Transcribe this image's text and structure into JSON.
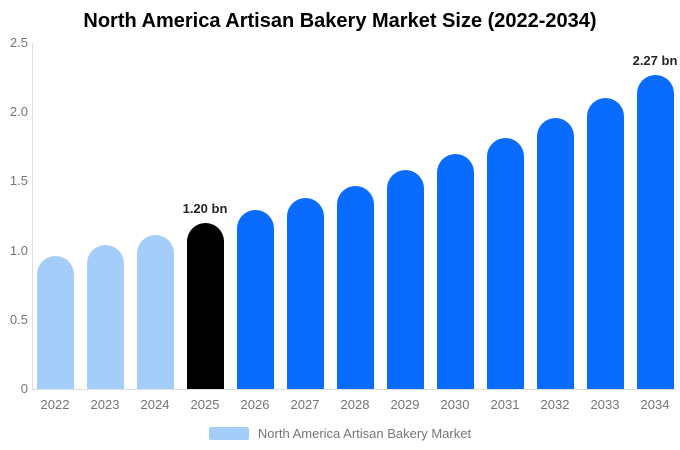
{
  "page": {
    "title": "North America Artisan Bakery Market Size (2022-2034)"
  },
  "chart_data": {
    "type": "bar",
    "title": "North America Artisan Bakery Market Size (2022-2034)",
    "unit": "bn",
    "categories": [
      "2022",
      "2023",
      "2024",
      "2025",
      "2026",
      "2027",
      "2028",
      "2029",
      "2030",
      "2031",
      "2032",
      "2033",
      "2034"
    ],
    "values": [
      0.96,
      1.04,
      1.11,
      1.2,
      1.29,
      1.38,
      1.47,
      1.58,
      1.7,
      1.81,
      1.96,
      2.1,
      2.27
    ],
    "bar_colors": [
      "#A5CDFA",
      "#A5CDFA",
      "#A5CDFA",
      "#000000",
      "#0A6CFF",
      "#0A6CFF",
      "#0A6CFF",
      "#0A6CFF",
      "#0A6CFF",
      "#0A6CFF",
      "#0A6CFF",
      "#0A6CFF",
      "#0A6CFF"
    ],
    "ylim": [
      0,
      2.5
    ],
    "y_tick_labels": [
      "2.5",
      "2.0",
      "1.5",
      "1.0",
      "0.5",
      "0"
    ],
    "y_tick_values": [
      2.5,
      2.0,
      1.5,
      1.0,
      0.5,
      0
    ],
    "grid": false,
    "data_labels": [
      {
        "category": "2025",
        "text": "1.20 bn"
      },
      {
        "category": "2034",
        "text": "2.27 bn"
      }
    ],
    "legend": {
      "position": "bottom",
      "label": "North America Artisan Bakery Market",
      "swatch_color": "#A5CDFA"
    }
  },
  "colors": {
    "background": "#FFFFFF",
    "axis_line": "#DEDEDE",
    "tick_text": "#757575",
    "title_text": "#000000",
    "data_label_text": "#262626"
  }
}
